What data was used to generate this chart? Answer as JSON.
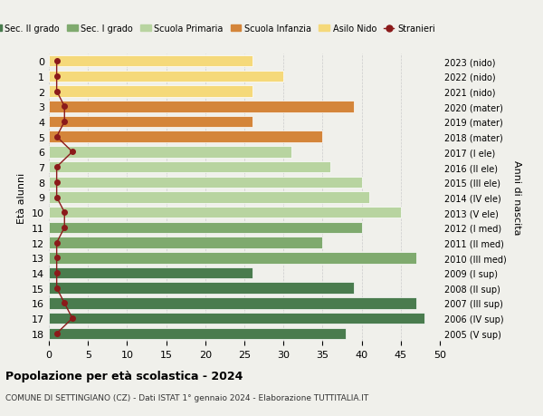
{
  "ages": [
    18,
    17,
    16,
    15,
    14,
    13,
    12,
    11,
    10,
    9,
    8,
    7,
    6,
    5,
    4,
    3,
    2,
    1,
    0
  ],
  "years": [
    "2005 (V sup)",
    "2006 (IV sup)",
    "2007 (III sup)",
    "2008 (II sup)",
    "2009 (I sup)",
    "2010 (III med)",
    "2011 (II med)",
    "2012 (I med)",
    "2013 (V ele)",
    "2014 (IV ele)",
    "2015 (III ele)",
    "2016 (II ele)",
    "2017 (I ele)",
    "2018 (mater)",
    "2019 (mater)",
    "2020 (mater)",
    "2021 (nido)",
    "2022 (nido)",
    "2023 (nido)"
  ],
  "bar_values": [
    38,
    48,
    47,
    39,
    26,
    47,
    35,
    40,
    45,
    41,
    40,
    36,
    31,
    35,
    26,
    39,
    26,
    30,
    26
  ],
  "stranieri": [
    1,
    3,
    2,
    1,
    1,
    1,
    1,
    2,
    2,
    1,
    1,
    1,
    3,
    1,
    2,
    2,
    1,
    1,
    1
  ],
  "bar_colors": [
    "#4a7c4e",
    "#4a7c4e",
    "#4a7c4e",
    "#4a7c4e",
    "#4a7c4e",
    "#7faa6e",
    "#7faa6e",
    "#7faa6e",
    "#b8d4a0",
    "#b8d4a0",
    "#b8d4a0",
    "#b8d4a0",
    "#b8d4a0",
    "#d4853a",
    "#d4853a",
    "#d4853a",
    "#f5d97a",
    "#f5d97a",
    "#f5d97a"
  ],
  "stranieri_color": "#8b1a1a",
  "stranieri_line_color": "#8b1a1a",
  "title": "Popolazione per età scolastica - 2024",
  "subtitle": "COMUNE DI SETTINGIANO (CZ) - Dati ISTAT 1° gennaio 2024 - Elaborazione TUTTITALIA.IT",
  "ylabel": "Età alunni",
  "ylabel_right": "Anni di nascita",
  "xlim": [
    0,
    50
  ],
  "xticks": [
    0,
    5,
    10,
    15,
    20,
    25,
    30,
    35,
    40,
    45,
    50
  ],
  "legend_labels": [
    "Sec. II grado",
    "Sec. I grado",
    "Scuola Primaria",
    "Scuola Infanzia",
    "Asilo Nido",
    "Stranieri"
  ],
  "legend_colors": [
    "#4a7c4e",
    "#7faa6e",
    "#b8d4a0",
    "#d4853a",
    "#f5d97a",
    "#8b1a1a"
  ],
  "background_color": "#f0f0eb",
  "grid_color": "#cccccc"
}
